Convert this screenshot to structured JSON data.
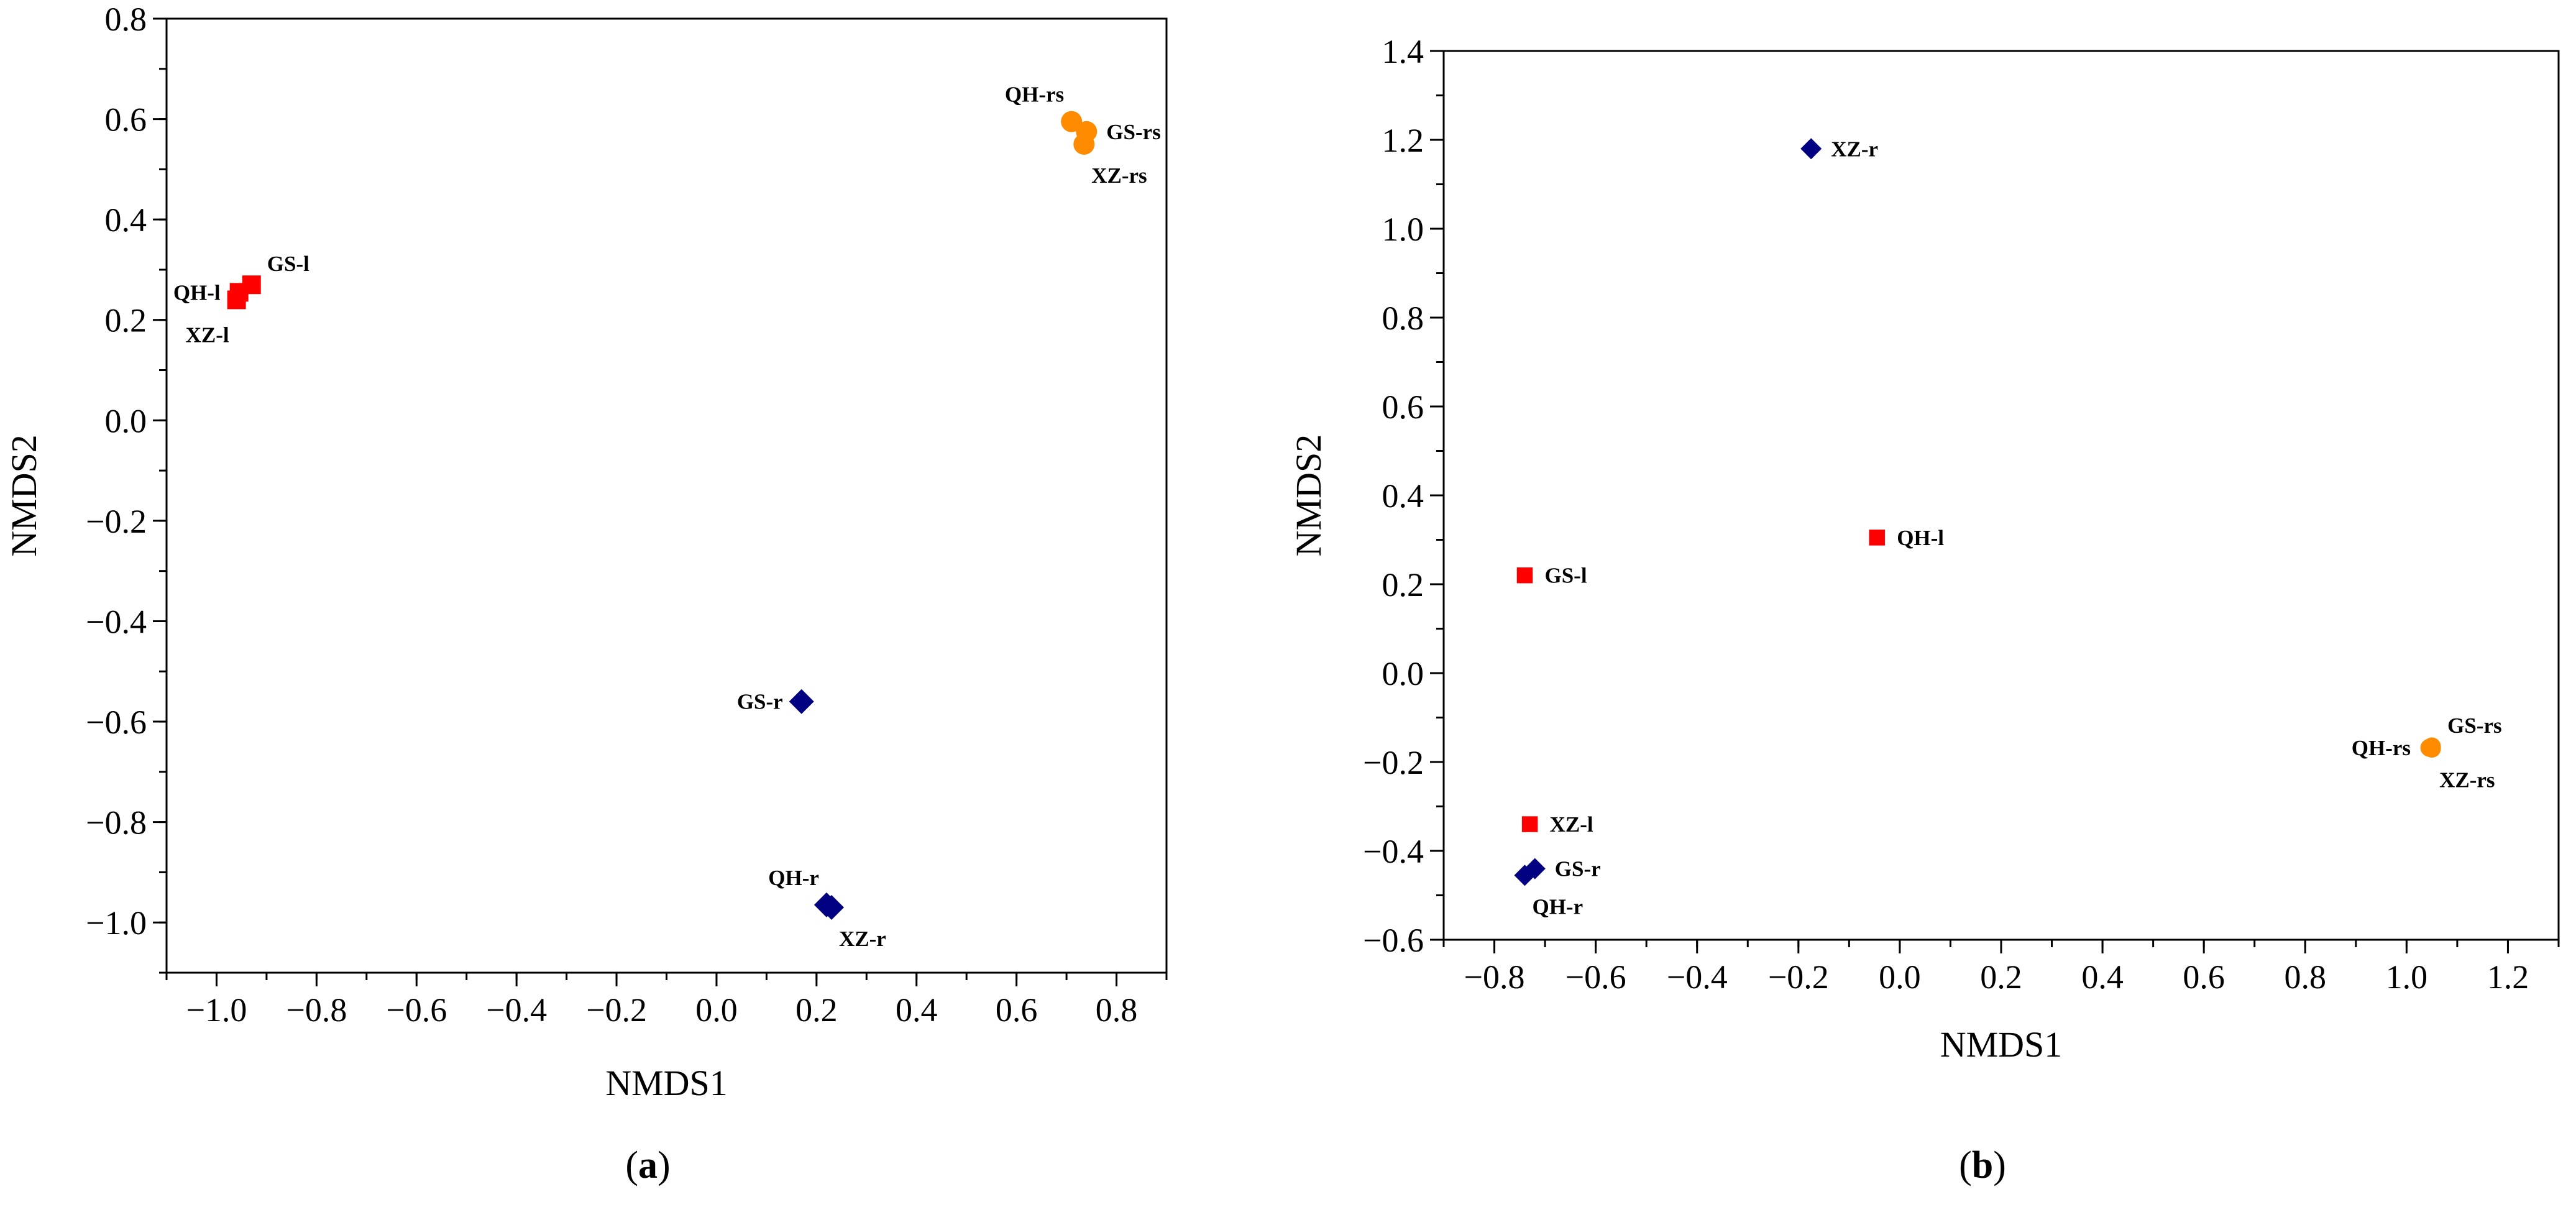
{
  "colors": {
    "leaf": "#ff0000",
    "root": "#000080",
    "rhizosphere": "#ff8c00"
  },
  "chart_data": [
    {
      "id": "a",
      "type": "scatter",
      "panel_label": "a",
      "xlabel": "NMDS1",
      "ylabel": "NMDS2",
      "xlim": [
        -1.1,
        0.9
      ],
      "ylim": [
        -1.1,
        0.8
      ],
      "xticks": [
        -1.0,
        -0.8,
        -0.6,
        -0.4,
        -0.2,
        0.0,
        0.2,
        0.4,
        0.6,
        0.8
      ],
      "xtick_labels": [
        "−1.0",
        "−0.8",
        "−0.6",
        "−0.4",
        "−0.2",
        "0.0",
        "0.2",
        "0.4",
        "0.6",
        "0.8"
      ],
      "yticks": [
        0.8,
        0.6,
        0.4,
        0.2,
        0.0,
        -0.2,
        -0.4,
        -0.6,
        -0.8,
        -1.0
      ],
      "ytick_labels": [
        "0.8",
        "0.6",
        "0.4",
        "0.2",
        "0.0",
        "−0.2",
        "−0.4",
        "−0.6",
        "−0.8",
        "−1.0"
      ],
      "points": [
        {
          "label": "GS-l",
          "group": "leaf",
          "marker": "square",
          "x": -0.93,
          "y": 0.27,
          "label_pos": "upper-right"
        },
        {
          "label": "QH-l",
          "group": "leaf",
          "marker": "square",
          "x": -0.955,
          "y": 0.255,
          "label_pos": "left"
        },
        {
          "label": "XZ-l",
          "group": "leaf",
          "marker": "square",
          "x": -0.96,
          "y": 0.24,
          "label_pos": "lower-left"
        },
        {
          "label": "QH-rs",
          "group": "rhizosphere",
          "marker": "circle",
          "x": 0.71,
          "y": 0.595,
          "label_pos": "upper-left"
        },
        {
          "label": "GS-rs",
          "group": "rhizosphere",
          "marker": "circle",
          "x": 0.74,
          "y": 0.575,
          "label_pos": "right"
        },
        {
          "label": "XZ-rs",
          "group": "rhizosphere",
          "marker": "circle",
          "x": 0.735,
          "y": 0.55,
          "label_pos": "lower-right"
        },
        {
          "label": "GS-r",
          "group": "root",
          "marker": "diamond",
          "x": 0.17,
          "y": -0.56,
          "label_pos": "left"
        },
        {
          "label": "QH-r",
          "group": "root",
          "marker": "diamond",
          "x": 0.22,
          "y": -0.965,
          "label_pos": "upper-left"
        },
        {
          "label": "XZ-r",
          "group": "root",
          "marker": "diamond",
          "x": 0.23,
          "y": -0.97,
          "label_pos": "lower-right"
        }
      ]
    },
    {
      "id": "b",
      "type": "scatter",
      "panel_label": "b",
      "xlabel": "NMDS1",
      "ylabel": "NMDS2",
      "xlim": [
        -0.9,
        1.3
      ],
      "ylim": [
        -0.6,
        1.4
      ],
      "xticks": [
        -0.8,
        -0.6,
        -0.4,
        -0.2,
        0.0,
        0.2,
        0.4,
        0.6,
        0.8,
        1.0,
        1.2
      ],
      "xtick_labels": [
        "−0.8",
        "−0.6",
        "−0.4",
        "−0.2",
        "0.0",
        "0.2",
        "0.4",
        "0.6",
        "0.8",
        "1.0",
        "1.2"
      ],
      "yticks": [
        1.4,
        1.2,
        1.0,
        0.8,
        0.6,
        0.4,
        0.2,
        0.0,
        -0.2,
        -0.4,
        -0.6
      ],
      "ytick_labels": [
        "1.4",
        "1.2",
        "1.0",
        "0.8",
        "0.6",
        "0.4",
        "0.2",
        "0.0",
        "−0.2",
        "−0.4",
        "−0.6"
      ],
      "points": [
        {
          "label": "XZ-r",
          "group": "root",
          "marker": "diamond",
          "x": -0.175,
          "y": 1.18,
          "label_pos": "right"
        },
        {
          "label": "QH-l",
          "group": "leaf",
          "marker": "square",
          "x": -0.045,
          "y": 0.305,
          "label_pos": "right"
        },
        {
          "label": "GS-l",
          "group": "leaf",
          "marker": "square",
          "x": -0.74,
          "y": 0.22,
          "label_pos": "right"
        },
        {
          "label": "XZ-l",
          "group": "leaf",
          "marker": "square",
          "x": -0.73,
          "y": -0.34,
          "label_pos": "right"
        },
        {
          "label": "GS-r",
          "group": "root",
          "marker": "diamond",
          "x": -0.72,
          "y": -0.44,
          "label_pos": "right"
        },
        {
          "label": "QH-r",
          "group": "root",
          "marker": "diamond",
          "x": -0.74,
          "y": -0.455,
          "label_pos": "lower-right"
        },
        {
          "label": "GS-rs",
          "group": "rhizosphere",
          "marker": "circle",
          "x": 1.05,
          "y": -0.165,
          "label_pos": "upper-right"
        },
        {
          "label": "QH-rs",
          "group": "rhizosphere",
          "marker": "circle",
          "x": 1.045,
          "y": -0.168,
          "label_pos": "left"
        },
        {
          "label": "XZ-rs",
          "group": "rhizosphere",
          "marker": "circle",
          "x": 1.05,
          "y": -0.17,
          "label_pos": "lower-right"
        }
      ]
    }
  ]
}
